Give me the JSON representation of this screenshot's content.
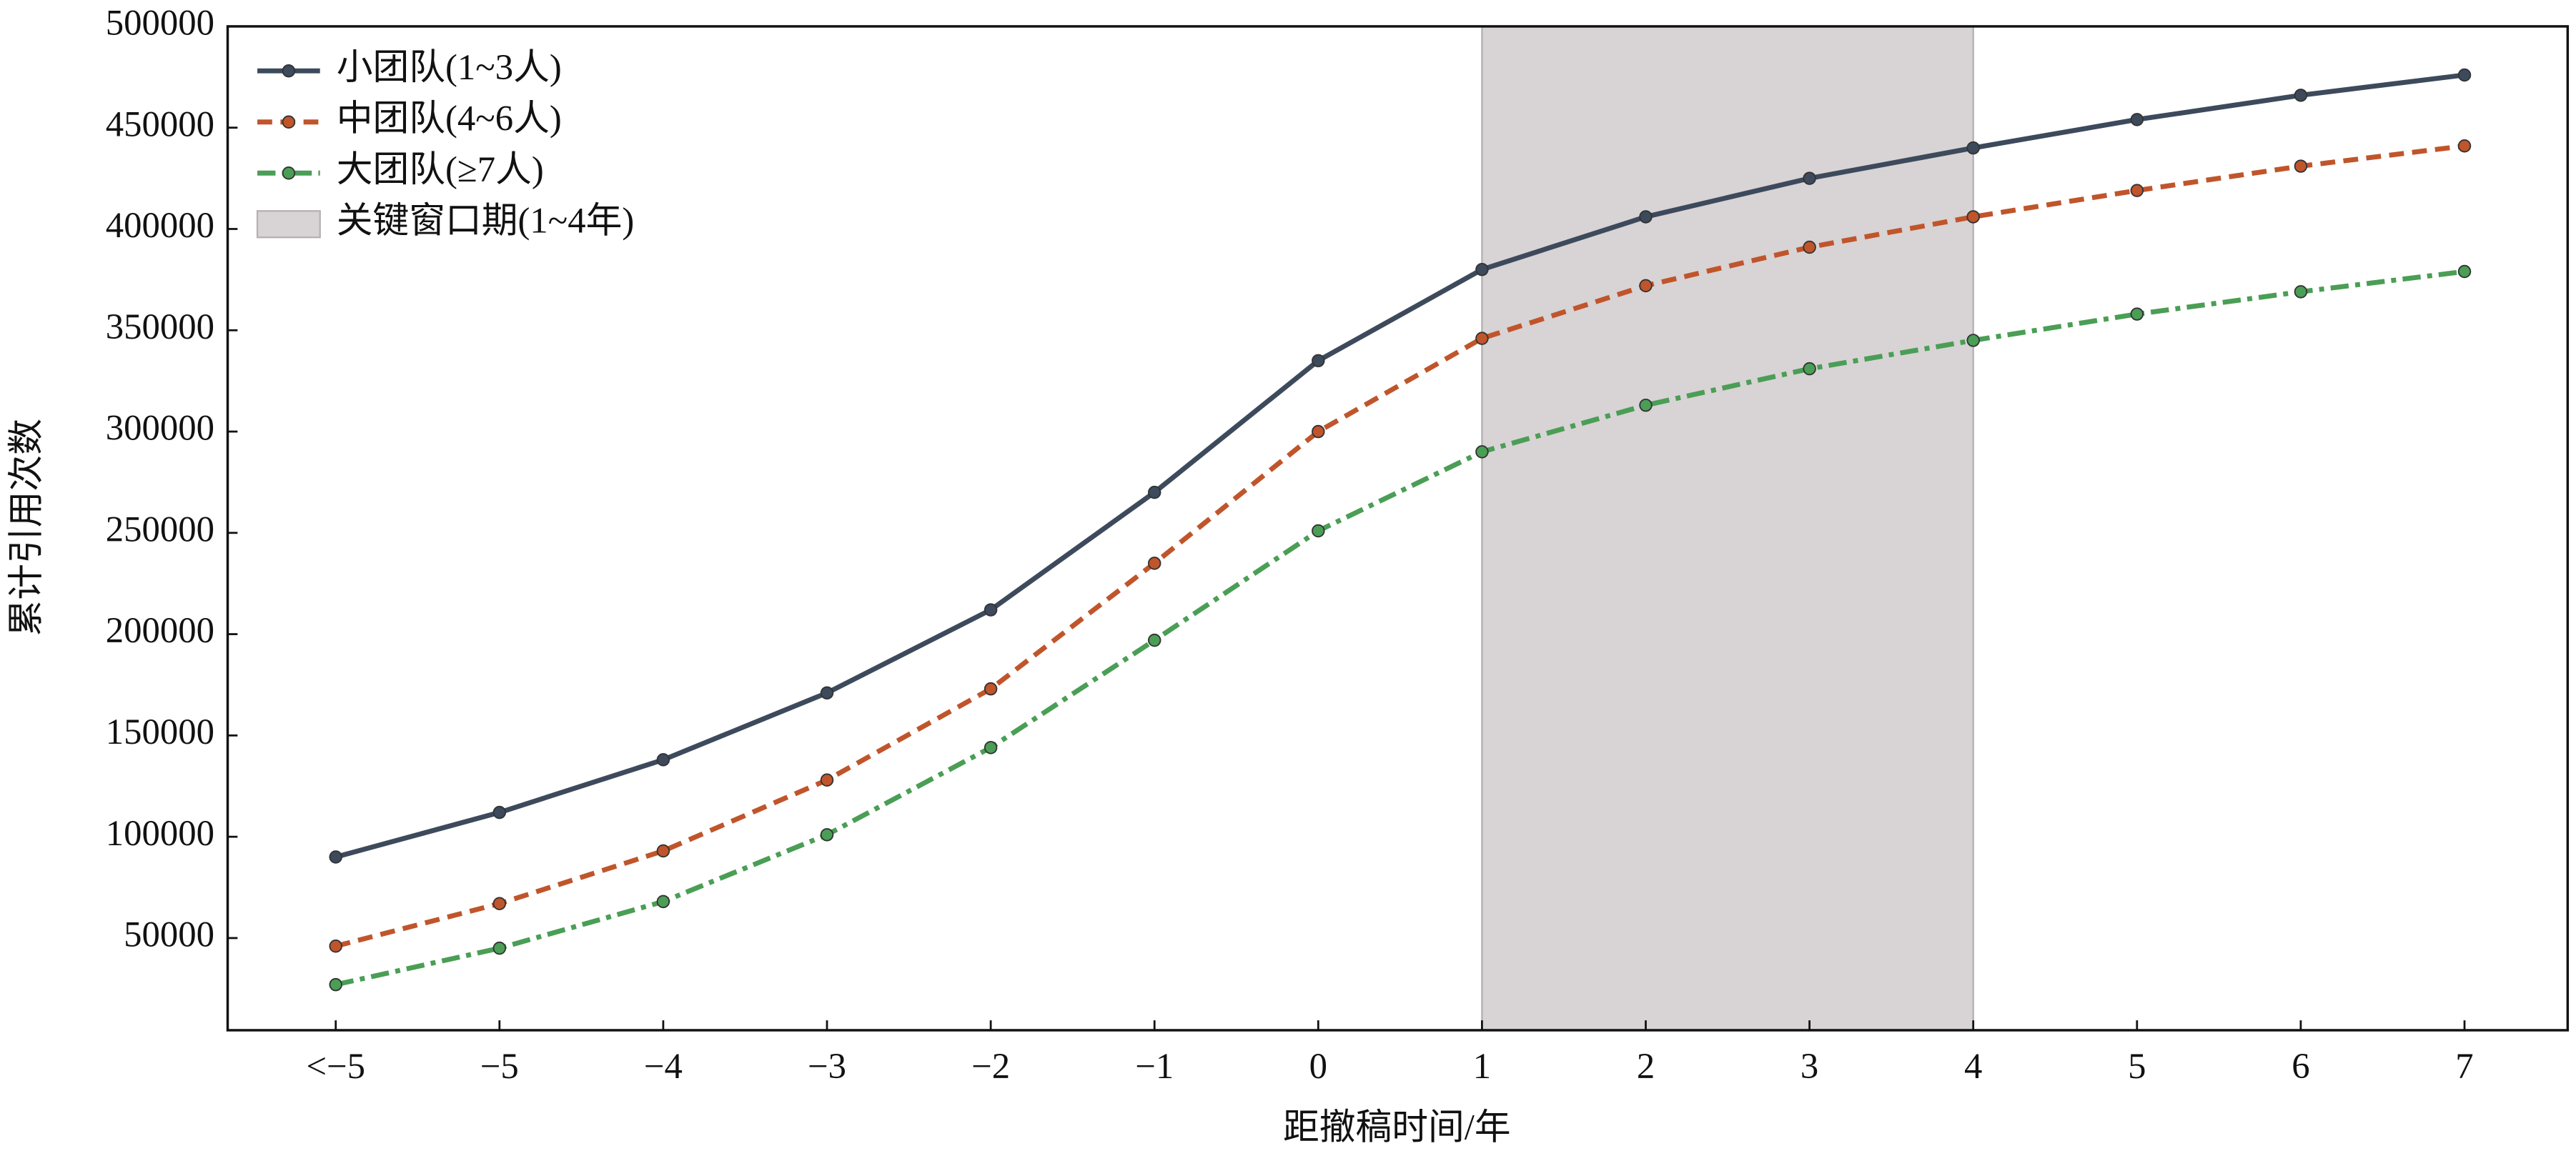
{
  "chart_data": {
    "type": "line",
    "x_label": "距撤稿时间/年",
    "y_label": "累计引用次数",
    "x": [
      -6,
      -5,
      -4,
      -3,
      -2,
      -1,
      0,
      1,
      2,
      3,
      4,
      5,
      6,
      7
    ],
    "xlim": [
      -6.66,
      7.63
    ],
    "xticks": [
      {
        "value": -6,
        "label": "<−5"
      },
      {
        "value": -5,
        "label": "−5"
      },
      {
        "value": -4,
        "label": "−4"
      },
      {
        "value": -3,
        "label": "−3"
      },
      {
        "value": -2,
        "label": "−2"
      },
      {
        "value": -1,
        "label": "−1"
      },
      0,
      1,
      2,
      3,
      4,
      5,
      6,
      7
    ],
    "ylim": [
      4500,
      500000
    ],
    "yticks": [
      50000,
      100000,
      150000,
      200000,
      250000,
      300000,
      350000,
      400000,
      450000,
      500000
    ],
    "series": [
      {
        "name": "小团队(1~3人)",
        "color": "#3d4a5c",
        "linestyle": "solid",
        "values": [
          90000,
          112000,
          138000,
          171000,
          212000,
          270000,
          335000,
          380000,
          406000,
          425000,
          440000,
          454000,
          466000,
          476000
        ]
      },
      {
        "name": "中团队(4~6人)",
        "color": "#c0552b",
        "linestyle": "dashed",
        "values": [
          46000,
          67000,
          93000,
          128000,
          173000,
          235000,
          300000,
          346000,
          372000,
          391000,
          406000,
          419000,
          431000,
          441000
        ]
      },
      {
        "name": "大团队(≥7人)",
        "color": "#4a9e55",
        "linestyle": "dashdot",
        "values": [
          27000,
          45000,
          68000,
          101000,
          144000,
          197000,
          251000,
          290000,
          313000,
          331000,
          345000,
          358000,
          369000,
          379000
        ]
      }
    ],
    "highlight": {
      "label": "关键窗口期(1~4年)",
      "span": [
        1,
        4
      ],
      "color": "#d8d3d5"
    },
    "legend": "upper left"
  }
}
